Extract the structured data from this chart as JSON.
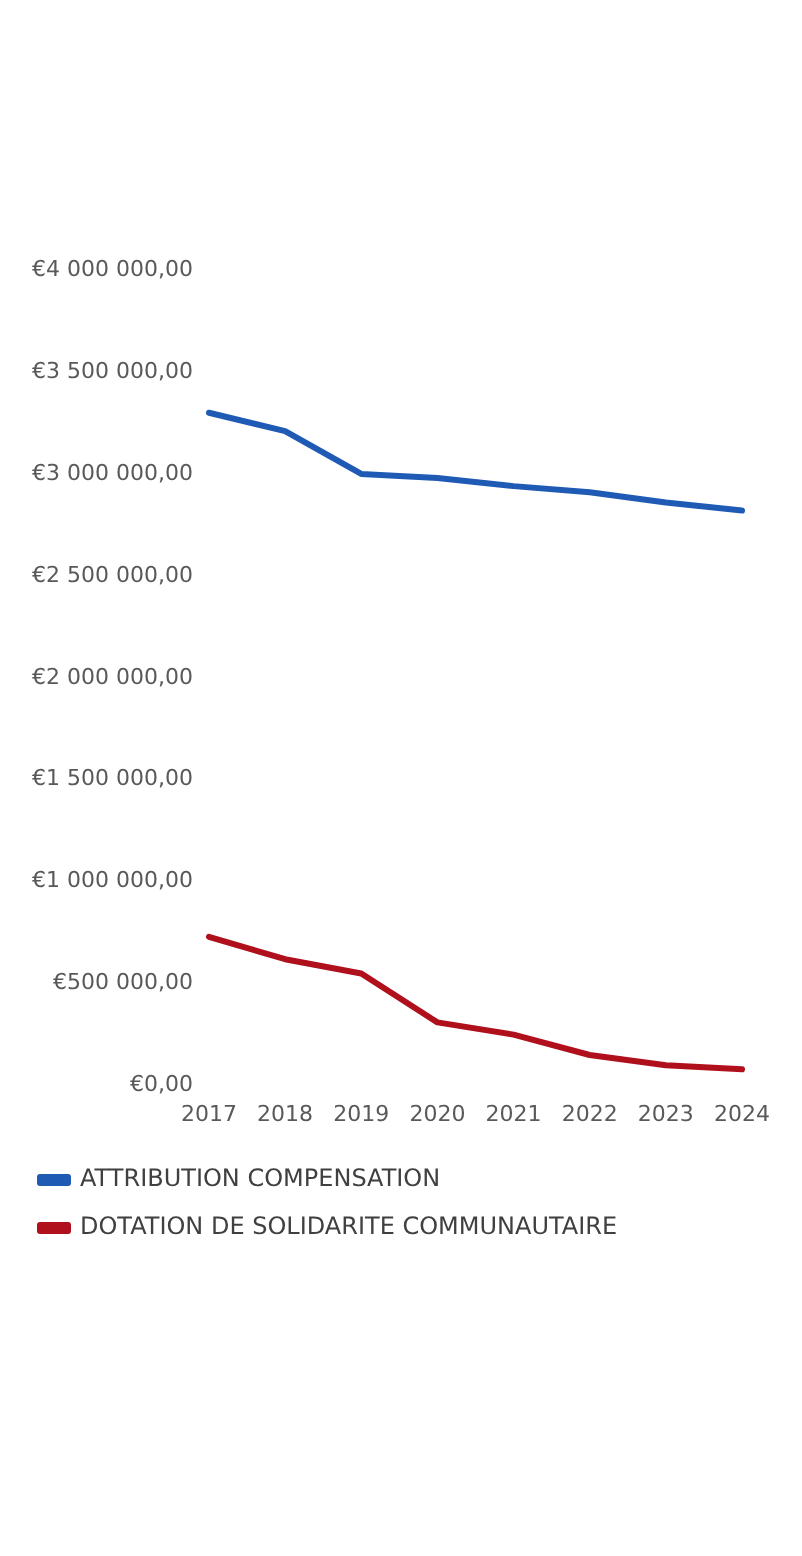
{
  "chart_data": {
    "type": "line",
    "categories": [
      "2017",
      "2018",
      "2019",
      "2020",
      "2021",
      "2022",
      "2023",
      "2024"
    ],
    "series": [
      {
        "name": "ATTRIBUTION COMPENSATION",
        "color": "#1f5bb5",
        "values": [
          3300000,
          3210000,
          3000000,
          2980000,
          2940000,
          2910000,
          2860000,
          2820000
        ]
      },
      {
        "name": "DOTATION DE SOLIDARITE COMMUNAUTAIRE",
        "color": "#b0101c",
        "values": [
          730000,
          620000,
          550000,
          310000,
          250000,
          150000,
          100000,
          80000
        ]
      }
    ],
    "ylim": [
      0,
      4000000
    ],
    "yticks": [
      {
        "value": 0,
        "label": "€0,00"
      },
      {
        "value": 500000,
        "label": "€500 000,00"
      },
      {
        "value": 1000000,
        "label": "€1 000 000,00"
      },
      {
        "value": 1500000,
        "label": "€1 500 000,00"
      },
      {
        "value": 2000000,
        "label": "€2 000 000,00"
      },
      {
        "value": 2500000,
        "label": "€2 500 000,00"
      },
      {
        "value": 3000000,
        "label": "€3 000 000,00"
      },
      {
        "value": 3500000,
        "label": "€3 500 000,00"
      },
      {
        "value": 4000000,
        "label": "€4 000 000,00"
      }
    ],
    "grid": false,
    "legend": "bottom",
    "marker": "none",
    "line_style": "solid"
  }
}
